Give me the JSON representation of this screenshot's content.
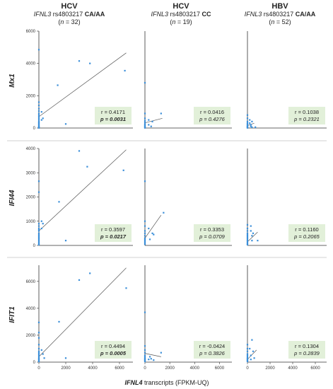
{
  "figure": {
    "x_axis_label": {
      "gene": "IFNL4",
      "rest": " transcripts (FPKM-UQ)"
    }
  },
  "columns": [
    {
      "virus": "HCV",
      "gene": "IFNL3",
      "snp": " rs4803217 ",
      "genotype": "CA/AA",
      "n_label": "(",
      "n_var": "n",
      "n_value": " = 32)"
    },
    {
      "virus": "HCV",
      "gene": "IFNL3",
      "snp": " rs4803217 ",
      "genotype": "CC",
      "n_label": "(",
      "n_var": "n",
      "n_value": " = 19)"
    },
    {
      "virus": "HBV",
      "gene": "IFNL3",
      "snp": " rs4803217 ",
      "genotype": "CA/AA",
      "n_label": "(",
      "n_var": "n",
      "n_value": " = 52)"
    }
  ],
  "rows": [
    "Mx1",
    "IFI44",
    "IFIT1"
  ],
  "colors": {
    "point": "#3b8fd9",
    "fit_line": "#555555",
    "stat_box": "#e2f0d9",
    "axis": "#333333"
  },
  "chart_data": [
    {
      "type": "scatter",
      "row": "Mx1",
      "column": 0,
      "xlim": [
        0,
        7000
      ],
      "ylim": [
        0,
        6000
      ],
      "xticks": [],
      "yticks": [
        0,
        2000,
        4000,
        6000
      ],
      "r": "r = 0.4171",
      "p": "p = 0.0031",
      "p_bold": true,
      "fit": [
        [
          0,
          700
        ],
        [
          6500,
          4650
        ]
      ],
      "points": [
        [
          0,
          4850
        ],
        [
          0,
          1600
        ],
        [
          0,
          1400
        ],
        [
          0,
          1200
        ],
        [
          0,
          1050
        ],
        [
          0,
          900
        ],
        [
          0,
          800
        ],
        [
          0,
          700
        ],
        [
          0,
          600
        ],
        [
          0,
          500
        ],
        [
          0,
          400
        ],
        [
          0,
          350
        ],
        [
          0,
          300
        ],
        [
          0,
          250
        ],
        [
          0,
          200
        ],
        [
          0,
          150
        ],
        [
          0,
          100
        ],
        [
          0,
          80
        ],
        [
          0,
          60
        ],
        [
          0,
          40
        ],
        [
          0,
          20
        ],
        [
          0,
          10
        ],
        [
          200,
          1000
        ],
        [
          200,
          500
        ],
        [
          300,
          600
        ],
        [
          1400,
          2650
        ],
        [
          2000,
          250
        ],
        [
          3000,
          4150
        ],
        [
          3800,
          4000
        ],
        [
          6400,
          3550
        ]
      ]
    },
    {
      "type": "scatter",
      "row": "Mx1",
      "column": 1,
      "xlim": [
        0,
        7000
      ],
      "ylim": [
        0,
        6000
      ],
      "xticks": [],
      "yticks": [],
      "r": "r = 0.0416",
      "p": "p = 0.4276",
      "p_bold": false,
      "fit": [
        [
          0,
          320
        ],
        [
          1400,
          600
        ]
      ],
      "points": [
        [
          0,
          2800
        ],
        [
          0,
          900
        ],
        [
          0,
          600
        ],
        [
          0,
          450
        ],
        [
          0,
          350
        ],
        [
          0,
          250
        ],
        [
          0,
          200
        ],
        [
          0,
          150
        ],
        [
          0,
          100
        ],
        [
          0,
          60
        ],
        [
          0,
          30
        ],
        [
          0,
          10
        ],
        [
          300,
          500
        ],
        [
          300,
          200
        ],
        [
          500,
          100
        ],
        [
          600,
          400
        ],
        [
          1300,
          900
        ]
      ]
    },
    {
      "type": "scatter",
      "row": "Mx1",
      "column": 2,
      "xlim": [
        0,
        7000
      ],
      "ylim": [
        0,
        6000
      ],
      "xticks": [],
      "yticks": [],
      "r": "r = 0.1038",
      "p": "p = 0.2321",
      "p_bold": false,
      "fit": [
        [
          0,
          150
        ],
        [
          600,
          300
        ]
      ],
      "points": [
        [
          0,
          800
        ],
        [
          0,
          600
        ],
        [
          0,
          400
        ],
        [
          0,
          300
        ],
        [
          0,
          250
        ],
        [
          0,
          200
        ],
        [
          0,
          150
        ],
        [
          0,
          100
        ],
        [
          0,
          80
        ],
        [
          0,
          50
        ],
        [
          0,
          30
        ],
        [
          0,
          10
        ],
        [
          200,
          500
        ],
        [
          200,
          300
        ],
        [
          300,
          200
        ],
        [
          300,
          100
        ],
        [
          400,
          400
        ],
        [
          400,
          50
        ],
        [
          700,
          50
        ]
      ]
    },
    {
      "type": "scatter",
      "row": "IFI44",
      "column": 0,
      "xlim": [
        0,
        7000
      ],
      "ylim": [
        0,
        4000
      ],
      "xticks": [],
      "yticks": [
        0,
        1000,
        2000,
        3000,
        4000
      ],
      "r": "r = 0.3597",
      "p": "p = 0.0217",
      "p_bold": true,
      "fit": [
        [
          0,
          600
        ],
        [
          6500,
          3950
        ]
      ],
      "points": [
        [
          0,
          2650
        ],
        [
          0,
          2200
        ],
        [
          0,
          900
        ],
        [
          0,
          800
        ],
        [
          0,
          700
        ],
        [
          0,
          650
        ],
        [
          0,
          600
        ],
        [
          0,
          500
        ],
        [
          0,
          450
        ],
        [
          0,
          400
        ],
        [
          0,
          350
        ],
        [
          0,
          300
        ],
        [
          0,
          250
        ],
        [
          0,
          200
        ],
        [
          0,
          150
        ],
        [
          0,
          100
        ],
        [
          0,
          60
        ],
        [
          0,
          30
        ],
        [
          200,
          1000
        ],
        [
          200,
          700
        ],
        [
          300,
          900
        ],
        [
          1500,
          1800
        ],
        [
          2000,
          200
        ],
        [
          3000,
          3900
        ],
        [
          3600,
          3250
        ],
        [
          6300,
          3100
        ]
      ]
    },
    {
      "type": "scatter",
      "row": "IFI44",
      "column": 1,
      "xlim": [
        0,
        7000
      ],
      "ylim": [
        0,
        4000
      ],
      "xticks": [],
      "yticks": [],
      "r": "r = 0.3353",
      "p": "p = 0.0709",
      "p_bold": false,
      "fit": [
        [
          0,
          300
        ],
        [
          1300,
          1250
        ]
      ],
      "points": [
        [
          0,
          2650
        ],
        [
          0,
          1000
        ],
        [
          0,
          800
        ],
        [
          0,
          600
        ],
        [
          0,
          500
        ],
        [
          0,
          400
        ],
        [
          0,
          300
        ],
        [
          0,
          250
        ],
        [
          0,
          200
        ],
        [
          0,
          150
        ],
        [
          0,
          100
        ],
        [
          0,
          50
        ],
        [
          300,
          700
        ],
        [
          400,
          250
        ],
        [
          600,
          500
        ],
        [
          700,
          450
        ],
        [
          1500,
          1350
        ]
      ]
    },
    {
      "type": "scatter",
      "row": "IFI44",
      "column": 2,
      "xlim": [
        0,
        7000
      ],
      "ylim": [
        0,
        4000
      ],
      "xticks": [],
      "yticks": [],
      "r": "r = 0.1160",
      "p": "p = 0.2065",
      "p_bold": false,
      "fit": [
        [
          0,
          150
        ],
        [
          900,
          550
        ]
      ],
      "points": [
        [
          0,
          850
        ],
        [
          0,
          700
        ],
        [
          0,
          600
        ],
        [
          0,
          500
        ],
        [
          0,
          450
        ],
        [
          0,
          400
        ],
        [
          0,
          350
        ],
        [
          0,
          300
        ],
        [
          0,
          250
        ],
        [
          0,
          200
        ],
        [
          0,
          150
        ],
        [
          0,
          100
        ],
        [
          0,
          60
        ],
        [
          0,
          30
        ],
        [
          300,
          800
        ],
        [
          300,
          600
        ],
        [
          400,
          400
        ],
        [
          400,
          200
        ],
        [
          500,
          500
        ],
        [
          900,
          200
        ]
      ]
    },
    {
      "type": "scatter",
      "row": "IFIT1",
      "column": 0,
      "xlim": [
        0,
        7000
      ],
      "ylim": [
        0,
        7200
      ],
      "xticks": [
        0,
        2000,
        4000,
        6000
      ],
      "yticks": [
        0,
        2000,
        4000,
        6000
      ],
      "r": "r = 0.4494",
      "p": "p = 0.0005",
      "p_bold": true,
      "fit": [
        [
          0,
          400
        ],
        [
          6500,
          7000
        ]
      ],
      "points": [
        [
          0,
          2950
        ],
        [
          0,
          2200
        ],
        [
          0,
          1800
        ],
        [
          0,
          1300
        ],
        [
          0,
          1000
        ],
        [
          0,
          800
        ],
        [
          0,
          700
        ],
        [
          0,
          600
        ],
        [
          0,
          500
        ],
        [
          0,
          400
        ],
        [
          0,
          300
        ],
        [
          0,
          250
        ],
        [
          0,
          200
        ],
        [
          0,
          150
        ],
        [
          0,
          100
        ],
        [
          0,
          50
        ],
        [
          200,
          900
        ],
        [
          300,
          600
        ],
        [
          400,
          300
        ],
        [
          1500,
          3000
        ],
        [
          2000,
          300
        ],
        [
          3000,
          6100
        ],
        [
          3800,
          6600
        ],
        [
          6500,
          5500
        ]
      ]
    },
    {
      "type": "scatter",
      "row": "IFIT1",
      "column": 1,
      "xlim": [
        0,
        7000
      ],
      "ylim": [
        0,
        7200
      ],
      "xticks": [
        0,
        2000,
        4000,
        6000
      ],
      "yticks": [],
      "r": "r = -0.0424",
      "p": "p = 0.3826",
      "p_bold": false,
      "fit": [
        [
          0,
          650
        ],
        [
          1300,
          400
        ]
      ],
      "points": [
        [
          0,
          3700
        ],
        [
          0,
          1200
        ],
        [
          0,
          900
        ],
        [
          0,
          700
        ],
        [
          0,
          500
        ],
        [
          0,
          400
        ],
        [
          0,
          300
        ],
        [
          0,
          250
        ],
        [
          0,
          200
        ],
        [
          0,
          150
        ],
        [
          0,
          100
        ],
        [
          0,
          50
        ],
        [
          300,
          200
        ],
        [
          400,
          400
        ],
        [
          500,
          250
        ],
        [
          700,
          150
        ],
        [
          1300,
          700
        ]
      ]
    },
    {
      "type": "scatter",
      "row": "IFIT1",
      "column": 2,
      "xlim": [
        0,
        7000
      ],
      "ylim": [
        0,
        7200
      ],
      "xticks": [
        0,
        2000,
        4000,
        6000
      ],
      "yticks": [],
      "r": "r = 0.1304",
      "p": "p = 0.2839",
      "p_bold": false,
      "fit": [
        [
          0,
          200
        ],
        [
          800,
          900
        ]
      ],
      "points": [
        [
          0,
          1300
        ],
        [
          0,
          1000
        ],
        [
          0,
          800
        ],
        [
          0,
          600
        ],
        [
          0,
          500
        ],
        [
          0,
          400
        ],
        [
          0,
          300
        ],
        [
          0,
          250
        ],
        [
          0,
          200
        ],
        [
          0,
          150
        ],
        [
          0,
          100
        ],
        [
          0,
          50
        ],
        [
          200,
          1000
        ],
        [
          300,
          500
        ],
        [
          300,
          200
        ],
        [
          400,
          1650
        ],
        [
          500,
          800
        ],
        [
          600,
          300
        ]
      ]
    }
  ]
}
